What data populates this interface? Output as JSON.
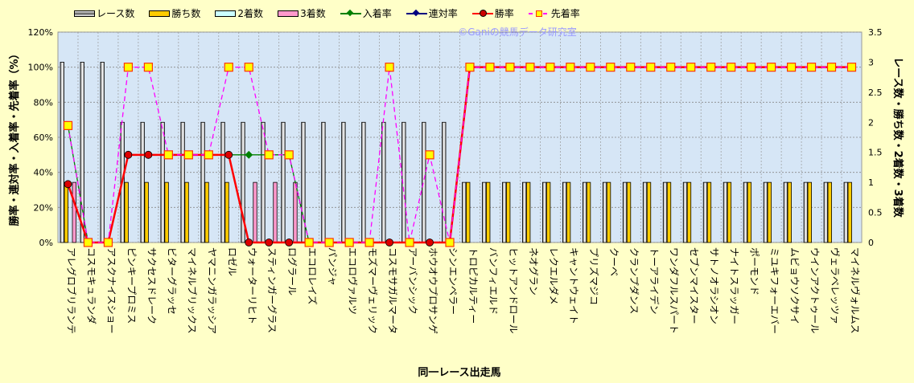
{
  "chart_data": {
    "type": "bar",
    "watermark": "©Ganiの競馬データ研究室",
    "xlabel": "同一レース出走馬",
    "ylabel_left": "勝率・連対率・入着率・先着率（%）",
    "ylabel_right": "レース数・勝ち数・2着数・3着数",
    "ylim_left": [
      0,
      120
    ],
    "ylim_right": [
      0,
      3.5
    ],
    "yticks_left": [
      "0%",
      "20%",
      "40%",
      "60%",
      "80%",
      "100%",
      "120%"
    ],
    "yticks_right": [
      "0",
      "0.5",
      "1",
      "1.5",
      "2",
      "2.5",
      "3",
      "3.5"
    ],
    "grid": true,
    "legend_position": "top",
    "categories": [
      "アレグロブリランテ",
      "コスモキュランダ",
      "アスクナイスショー",
      "ピンキープロミス",
      "サクセスドレーク",
      "ビターグラッセ",
      "マイネルブリックス",
      "ヤマニンガラッシア",
      "ロゼル",
      "ウォーターリヒト",
      "スティンガーグラス",
      "ログラール",
      "エコロレイズ",
      "パンジャ",
      "エコロヴァルツ",
      "モズマーヴェリック",
      "コスモサガルマータ",
      "アーバンシック",
      "ホウオウプロサンゲ",
      "シンエンペラー",
      "トロピカルティー",
      "バンフィエルド",
      "ヒットアンドロール",
      "ネオグラン",
      "レクエルダメ",
      "キャントウェイト",
      "プリズマジコ",
      "クーベ",
      "クランプダンス",
      "トーアライデン",
      "ワンダフルスパート",
      "セブンマイスター",
      "サトノオラシオン",
      "ナイトスラッガー",
      "ポーモンド",
      "ミユキフォーエバー",
      "ムビョウソクサイ",
      "ウインアクトゥール",
      "ヴェラベレッツァ",
      "マイネルヴォルムス"
    ],
    "bar_series": [
      {
        "name": "レース数",
        "axis": "right",
        "color": "#FFFFFF",
        "values": [
          3,
          3,
          3,
          2,
          2,
          2,
          2,
          2,
          2,
          2,
          2,
          2,
          2,
          2,
          2,
          2,
          2,
          2,
          2,
          2,
          1,
          1,
          1,
          1,
          1,
          1,
          1,
          1,
          1,
          1,
          1,
          1,
          1,
          1,
          1,
          1,
          1,
          1,
          1,
          1
        ]
      },
      {
        "name": "勝ち数",
        "axis": "right",
        "color": "#FFCC00",
        "values": [
          1,
          0,
          0,
          1,
          1,
          1,
          1,
          1,
          1,
          0,
          0,
          0,
          0,
          0,
          0,
          0,
          0,
          0,
          0,
          0,
          1,
          1,
          1,
          1,
          1,
          1,
          1,
          1,
          1,
          1,
          1,
          1,
          1,
          1,
          1,
          1,
          1,
          1,
          1,
          1
        ]
      },
      {
        "name": "2着数",
        "axis": "right",
        "color": "#CCFFFF",
        "values": [
          0,
          0,
          0,
          0,
          0,
          0,
          0,
          0,
          0,
          0,
          0,
          0,
          0,
          0,
          0,
          0,
          0,
          0,
          0,
          0,
          0,
          0,
          0,
          0,
          0,
          0,
          0,
          0,
          0,
          0,
          0,
          0,
          0,
          0,
          0,
          0,
          0,
          0,
          0,
          0
        ]
      },
      {
        "name": "3着数",
        "axis": "right",
        "color": "#FF99CC",
        "values": [
          1,
          0,
          0,
          0,
          0,
          0,
          0,
          0,
          0,
          1,
          1,
          1,
          0,
          0,
          0,
          0,
          0,
          0,
          0,
          0,
          0,
          0,
          0,
          0,
          0,
          0,
          0,
          0,
          0,
          0,
          0,
          0,
          0,
          0,
          0,
          0,
          0,
          0,
          0,
          0
        ]
      }
    ],
    "line_series": [
      {
        "name": "入着率",
        "axis": "left",
        "color": "#008000",
        "marker": "diamond",
        "values": [
          66.7,
          0,
          0,
          50,
          50,
          50,
          50,
          50,
          50,
          50,
          50,
          50,
          0,
          0,
          0,
          0,
          0,
          0,
          0,
          0,
          100,
          100,
          100,
          100,
          100,
          100,
          100,
          100,
          100,
          100,
          100,
          100,
          100,
          100,
          100,
          100,
          100,
          100,
          100,
          100
        ]
      },
      {
        "name": "連対率",
        "axis": "left",
        "color": "#000080",
        "marker": "diamond",
        "values": [
          33.3,
          0,
          0,
          50,
          50,
          50,
          50,
          50,
          50,
          0,
          0,
          0,
          0,
          0,
          0,
          0,
          0,
          0,
          0,
          0,
          100,
          100,
          100,
          100,
          100,
          100,
          100,
          100,
          100,
          100,
          100,
          100,
          100,
          100,
          100,
          100,
          100,
          100,
          100,
          100
        ]
      },
      {
        "name": "勝率",
        "axis": "left",
        "color": "#FF0000",
        "marker": "circle",
        "values": [
          33.3,
          0,
          0,
          50,
          50,
          50,
          50,
          50,
          50,
          0,
          0,
          0,
          0,
          0,
          0,
          0,
          0,
          0,
          0,
          0,
          100,
          100,
          100,
          100,
          100,
          100,
          100,
          100,
          100,
          100,
          100,
          100,
          100,
          100,
          100,
          100,
          100,
          100,
          100,
          100
        ]
      },
      {
        "name": "先着率",
        "axis": "left",
        "color": "#FF00FF",
        "marker": "square",
        "values": [
          66.7,
          0,
          0,
          100,
          100,
          50,
          50,
          50,
          100,
          100,
          50,
          50,
          0,
          0,
          0,
          0,
          100,
          0,
          50,
          0,
          100,
          100,
          100,
          100,
          100,
          100,
          100,
          100,
          100,
          100,
          100,
          100,
          100,
          100,
          100,
          100,
          100,
          100,
          100,
          100
        ]
      }
    ]
  }
}
